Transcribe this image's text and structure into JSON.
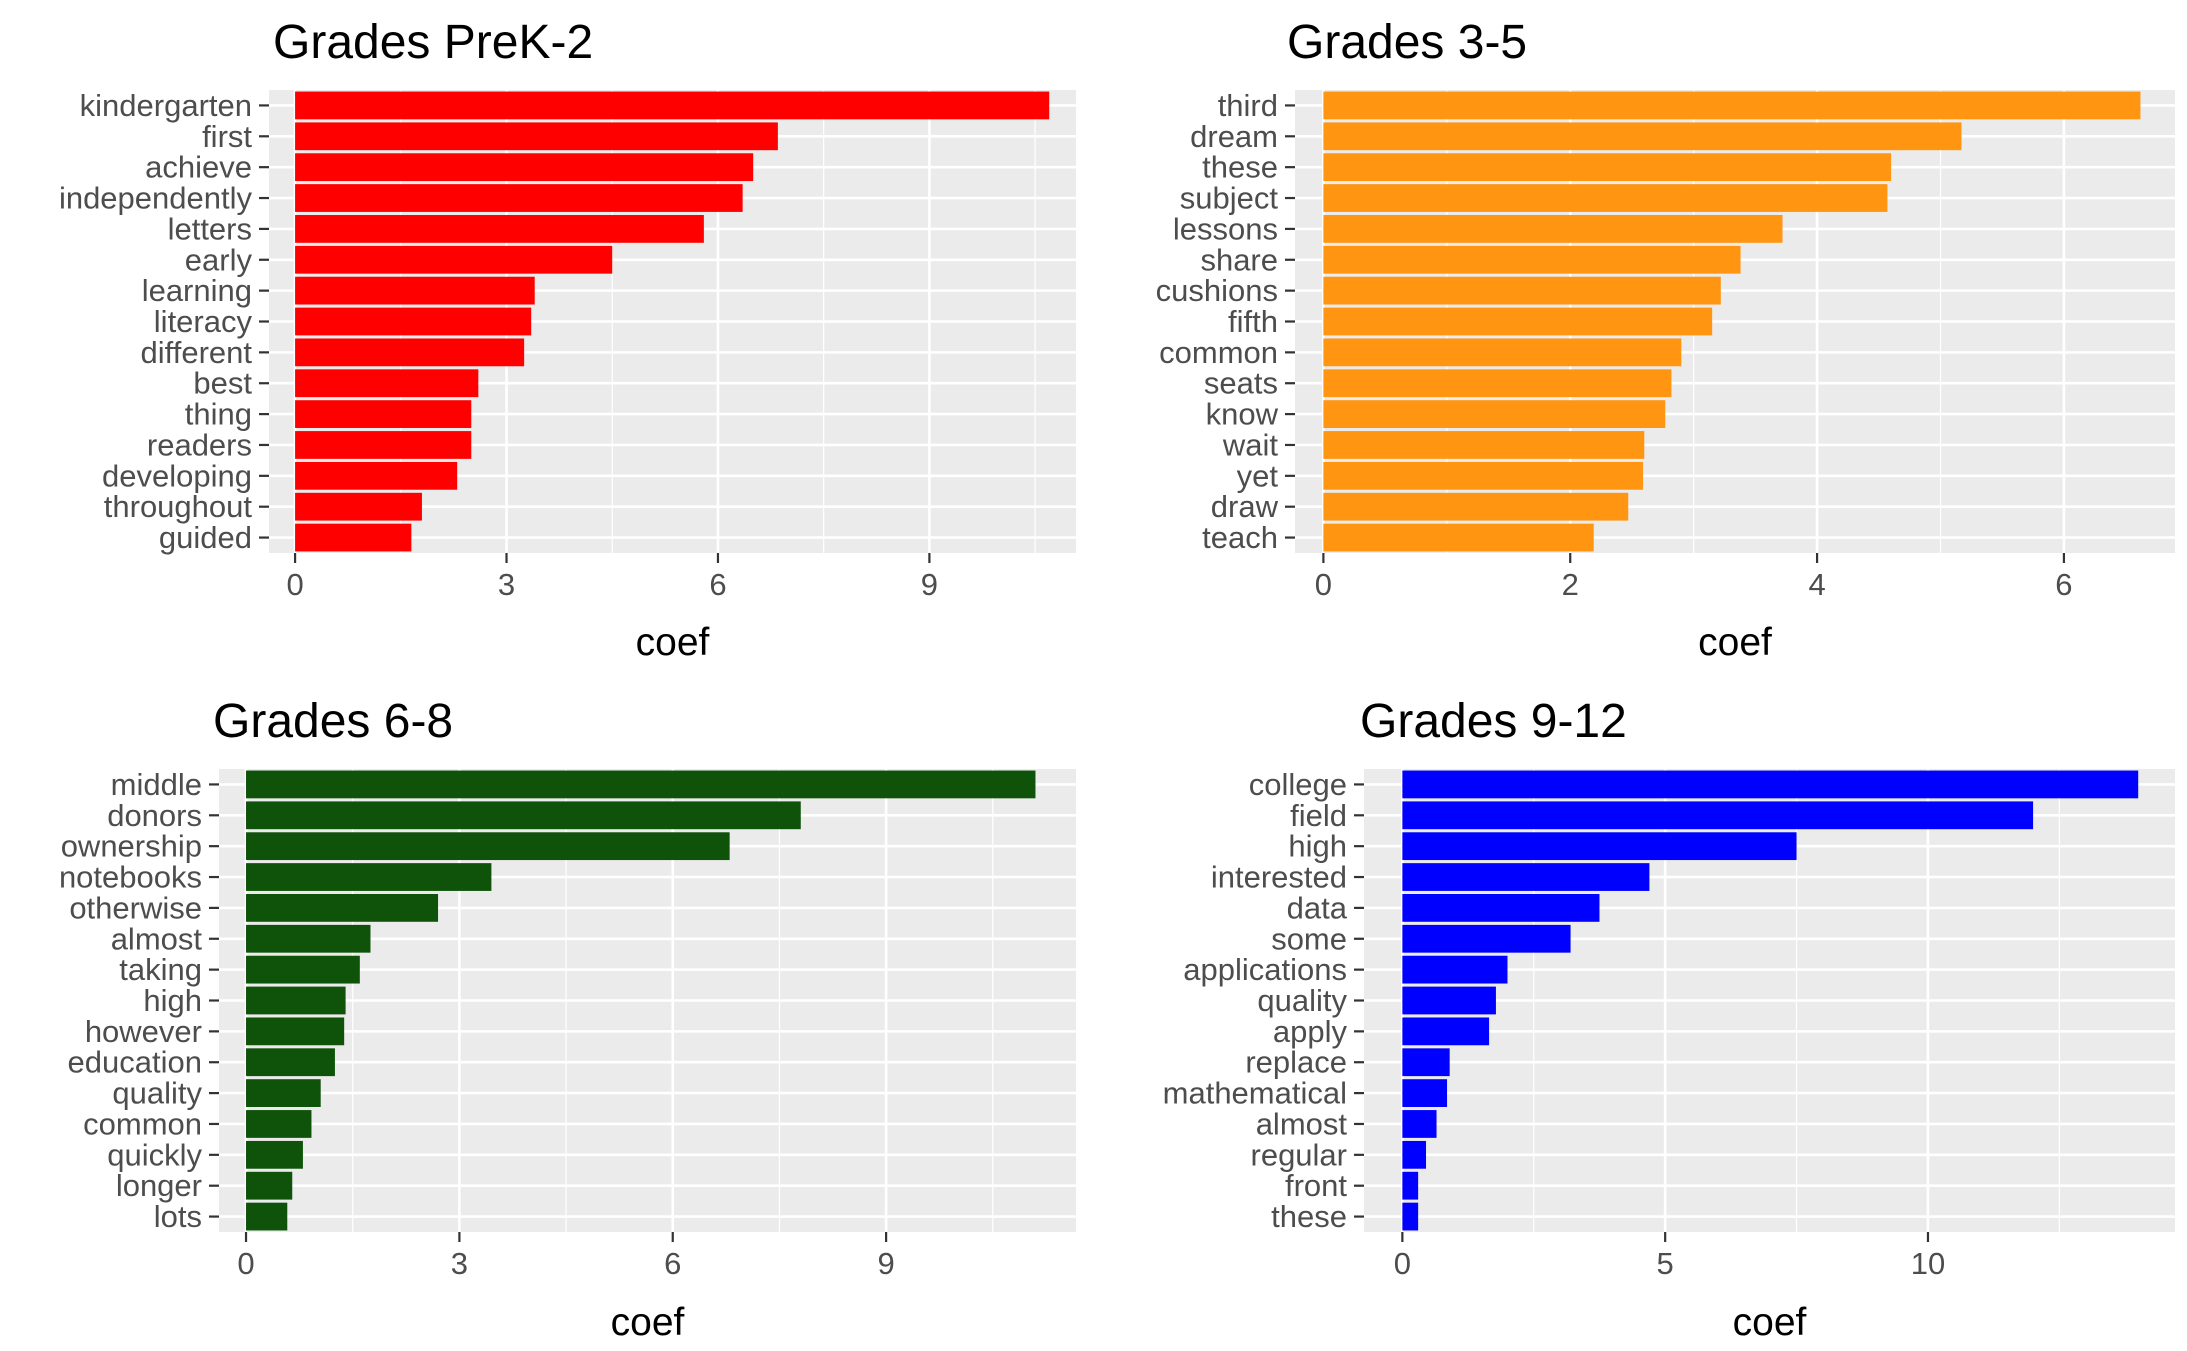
{
  "chart_data": [
    {
      "type": "bar",
      "orientation": "horizontal",
      "title": "Grades PreK-2",
      "xlabel": "coef",
      "ylabel": "",
      "color": "#FF0000",
      "xlim": [
        -0.37,
        11.08
      ],
      "xticks": [
        0,
        3,
        6,
        9
      ],
      "grid": true,
      "categories": [
        "kindergarten",
        "first",
        "achieve",
        "independently",
        "letters",
        "early",
        "learning",
        "literacy",
        "different",
        "best",
        "thing",
        "readers",
        "developing",
        "throughout",
        "guided"
      ],
      "values": [
        10.7,
        6.85,
        6.5,
        6.35,
        5.8,
        4.5,
        3.4,
        3.35,
        3.25,
        2.6,
        2.5,
        2.5,
        2.3,
        1.8,
        1.65
      ]
    },
    {
      "type": "bar",
      "orientation": "horizontal",
      "title": "Grades 3-5",
      "xlabel": "coef",
      "ylabel": "",
      "color": "#FF9510",
      "xlim": [
        -0.23,
        6.9
      ],
      "xticks": [
        0,
        2,
        4,
        6
      ],
      "grid": true,
      "categories": [
        "third",
        "dream",
        "these",
        "subject",
        "lessons",
        "share",
        "cushions",
        "fifth",
        "common",
        "seats",
        "know",
        "wait",
        "yet",
        "draw",
        "teach"
      ],
      "values": [
        6.62,
        5.17,
        4.6,
        4.57,
        3.72,
        3.38,
        3.22,
        3.15,
        2.9,
        2.82,
        2.77,
        2.6,
        2.59,
        2.47,
        2.19
      ]
    },
    {
      "type": "bar",
      "orientation": "horizontal",
      "title": "Grades 6-8",
      "xlabel": "coef",
      "ylabel": "",
      "color": "#0F520A",
      "xlim": [
        -0.38,
        11.67
      ],
      "xticks": [
        0,
        3,
        6,
        9
      ],
      "grid": true,
      "categories": [
        "middle",
        "donors",
        "ownership",
        "notebooks",
        "otherwise",
        "almost",
        "taking",
        "high",
        "however",
        "education",
        "quality",
        "common",
        "quickly",
        "longer",
        "lots"
      ],
      "values": [
        11.1,
        7.8,
        6.8,
        3.45,
        2.7,
        1.75,
        1.6,
        1.4,
        1.38,
        1.25,
        1.05,
        0.92,
        0.8,
        0.65,
        0.58
      ]
    },
    {
      "type": "bar",
      "orientation": "horizontal",
      "title": "Grades 9-12",
      "xlabel": "coef",
      "ylabel": "",
      "color": "#0000FF",
      "xlim": [
        -0.73,
        14.7
      ],
      "xticks": [
        0,
        5,
        10
      ],
      "grid": true,
      "categories": [
        "college",
        "field",
        "high",
        "interested",
        "data",
        "some",
        "applications",
        "quality",
        "apply",
        "replace",
        "mathematical",
        "almost",
        "regular",
        "front",
        "these"
      ],
      "values": [
        14.0,
        12.0,
        7.5,
        4.7,
        3.75,
        3.2,
        2.0,
        1.78,
        1.65,
        0.9,
        0.85,
        0.65,
        0.45,
        0.3,
        0.3
      ]
    }
  ]
}
